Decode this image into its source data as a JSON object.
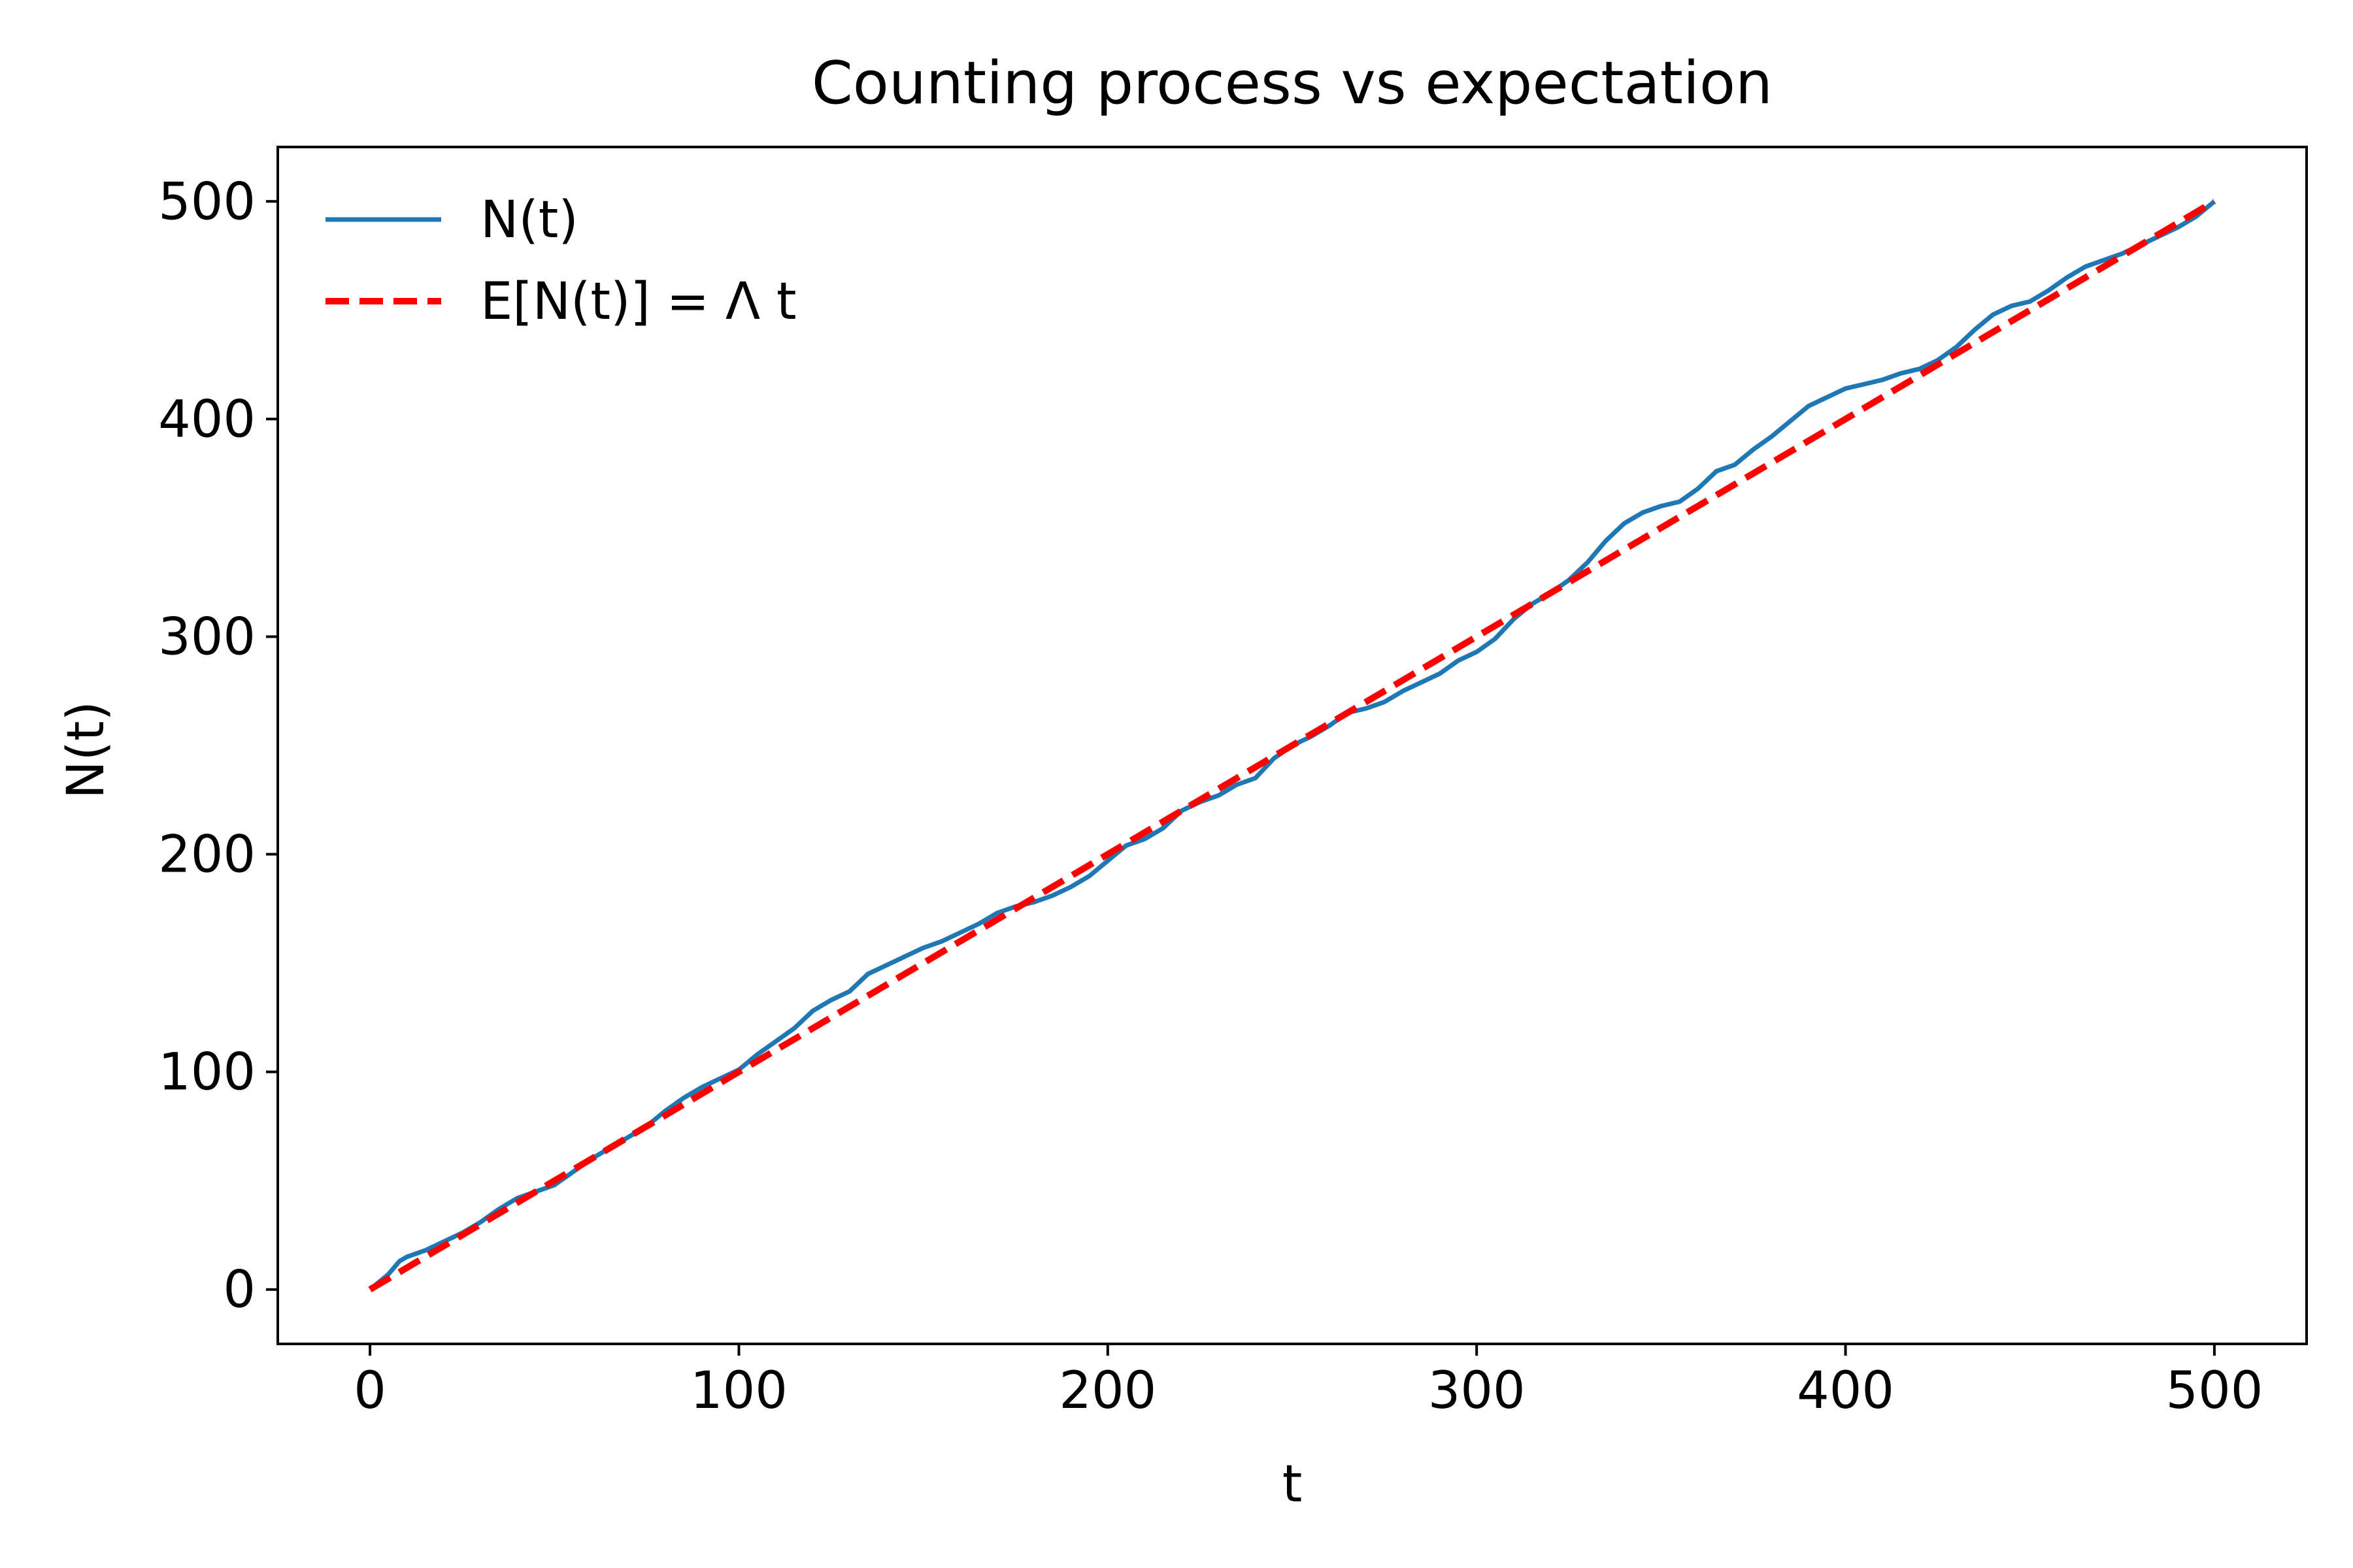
{
  "chart_data": {
    "type": "line",
    "title": "Counting process vs expectation",
    "xlabel": "t",
    "ylabel": "N(t)",
    "xlim": [
      -25,
      525
    ],
    "ylim": [
      -25,
      525
    ],
    "xticks": [
      0,
      100,
      200,
      300,
      400,
      500
    ],
    "yticks": [
      0,
      100,
      200,
      300,
      400,
      500
    ],
    "grid": false,
    "legend_position": "top-left",
    "series": [
      {
        "name": "N(t)",
        "color": "#1f77b4",
        "style": "solid",
        "x": [
          0,
          5,
          8,
          10,
          15,
          20,
          25,
          30,
          35,
          40,
          45,
          50,
          55,
          60,
          65,
          70,
          75,
          80,
          85,
          90,
          95,
          100,
          105,
          110,
          115,
          120,
          125,
          130,
          135,
          140,
          145,
          150,
          155,
          160,
          165,
          170,
          175,
          180,
          185,
          190,
          195,
          200,
          205,
          210,
          215,
          220,
          225,
          230,
          235,
          240,
          245,
          250,
          255,
          260,
          265,
          270,
          275,
          280,
          285,
          290,
          295,
          300,
          305,
          310,
          315,
          320,
          325,
          330,
          335,
          340,
          345,
          350,
          355,
          360,
          365,
          370,
          375,
          380,
          385,
          390,
          395,
          400,
          405,
          410,
          415,
          420,
          425,
          430,
          435,
          440,
          445,
          450,
          455,
          460,
          465,
          470,
          475,
          480,
          485,
          490,
          495,
          500
        ],
        "y": [
          0,
          7,
          13,
          15,
          18,
          22,
          26,
          31,
          37,
          42,
          45,
          48,
          54,
          60,
          65,
          70,
          75,
          82,
          88,
          93,
          97,
          101,
          108,
          114,
          120,
          128,
          133,
          137,
          145,
          149,
          153,
          157,
          160,
          164,
          168,
          173,
          176,
          178,
          181,
          185,
          190,
          197,
          204,
          207,
          212,
          220,
          224,
          227,
          232,
          235,
          244,
          250,
          254,
          259,
          265,
          267,
          270,
          275,
          279,
          283,
          289,
          293,
          299,
          308,
          315,
          320,
          326,
          334,
          344,
          352,
          357,
          360,
          362,
          368,
          376,
          379,
          386,
          392,
          399,
          406,
          410,
          414,
          416,
          418,
          421,
          423,
          427,
          433,
          441,
          448,
          452,
          454,
          459,
          465,
          470,
          473,
          476,
          480,
          484,
          488,
          493,
          500
        ]
      },
      {
        "name": "E[N(t)] = Λ t",
        "color": "#ff0000",
        "style": "dashed",
        "x": [
          0,
          500
        ],
        "y": [
          0,
          500
        ]
      }
    ]
  }
}
